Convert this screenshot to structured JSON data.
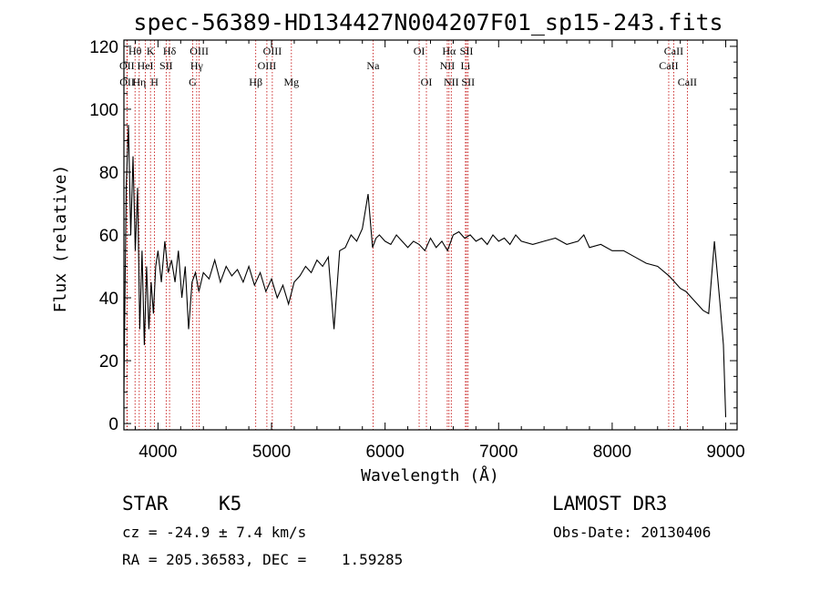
{
  "chart_data": {
    "type": "line",
    "title": "spec-56389-HD134427N004207F01_sp15-243.fits",
    "xlabel": "Wavelength (Å)",
    "ylabel": "Flux (relative)",
    "xlim": [
      3700,
      9100
    ],
    "ylim": [
      -2,
      122
    ],
    "xticks": [
      4000,
      5000,
      6000,
      7000,
      8000,
      9000
    ],
    "yticks": [
      0,
      20,
      40,
      60,
      80,
      100,
      120
    ],
    "series": [
      {
        "name": "flux",
        "x": [
          3700,
          3720,
          3740,
          3760,
          3780,
          3800,
          3820,
          3840,
          3860,
          3880,
          3900,
          3920,
          3940,
          3960,
          3980,
          4000,
          4030,
          4060,
          4090,
          4120,
          4150,
          4180,
          4210,
          4240,
          4270,
          4300,
          4330,
          4360,
          4400,
          4450,
          4500,
          4550,
          4600,
          4650,
          4700,
          4750,
          4800,
          4850,
          4900,
          4950,
          5000,
          5050,
          5100,
          5150,
          5200,
          5250,
          5300,
          5350,
          5400,
          5450,
          5500,
          5550,
          5600,
          5650,
          5700,
          5750,
          5800,
          5850,
          5890,
          5920,
          5950,
          6000,
          6050,
          6100,
          6150,
          6200,
          6250,
          6300,
          6350,
          6400,
          6450,
          6500,
          6550,
          6600,
          6650,
          6700,
          6750,
          6800,
          6850,
          6900,
          6950,
          7000,
          7050,
          7100,
          7150,
          7200,
          7300,
          7400,
          7500,
          7600,
          7700,
          7750,
          7800,
          7900,
          8000,
          8100,
          8200,
          8300,
          8400,
          8500,
          8550,
          8600,
          8650,
          8700,
          8750,
          8800,
          8850,
          8900,
          8950,
          8980,
          9000
        ],
        "values": [
          10,
          75,
          95,
          60,
          85,
          55,
          75,
          30,
          55,
          25,
          50,
          30,
          45,
          35,
          50,
          55,
          45,
          58,
          48,
          52,
          45,
          55,
          40,
          50,
          30,
          45,
          48,
          42,
          48,
          46,
          52,
          45,
          50,
          47,
          49,
          45,
          50,
          44,
          48,
          42,
          46,
          40,
          44,
          38,
          45,
          47,
          50,
          48,
          52,
          50,
          53,
          30,
          55,
          56,
          60,
          58,
          62,
          73,
          56,
          59,
          60,
          58,
          57,
          60,
          58,
          56,
          58,
          57,
          55,
          59,
          56,
          58,
          55,
          60,
          61,
          59,
          60,
          58,
          59,
          57,
          60,
          58,
          59,
          57,
          60,
          58,
          57,
          58,
          59,
          57,
          58,
          60,
          56,
          57,
          55,
          55,
          53,
          51,
          50,
          47,
          45,
          43,
          42,
          40,
          38,
          36,
          35,
          58,
          38,
          25,
          2
        ]
      }
    ],
    "spectral_lines": [
      {
        "label": "OII",
        "wavelength": 3727,
        "row": 2
      },
      {
        "label": "OII",
        "wavelength": 3729,
        "row": 3
      },
      {
        "label": "Hθ",
        "wavelength": 3798,
        "row": 1
      },
      {
        "label": "Hη",
        "wavelength": 3835,
        "row": 3
      },
      {
        "label": "HeI",
        "wavelength": 3889,
        "row": 2
      },
      {
        "label": "K",
        "wavelength": 3934,
        "row": 1
      },
      {
        "label": "H",
        "wavelength": 3969,
        "row": 3
      },
      {
        "label": "SII",
        "wavelength": 4072,
        "row": 2
      },
      {
        "label": "Hδ",
        "wavelength": 4102,
        "row": 1
      },
      {
        "label": "G",
        "wavelength": 4305,
        "row": 3
      },
      {
        "label": "Hγ",
        "wavelength": 4341,
        "row": 2
      },
      {
        "label": "OIII",
        "wavelength": 4363,
        "row": 1
      },
      {
        "label": "Hβ",
        "wavelength": 4861,
        "row": 3
      },
      {
        "label": "OIII",
        "wavelength": 4959,
        "row": 2
      },
      {
        "label": "OIII",
        "wavelength": 5007,
        "row": 1
      },
      {
        "label": "Mg",
        "wavelength": 5175,
        "row": 3
      },
      {
        "label": "Na",
        "wavelength": 5894,
        "row": 2
      },
      {
        "label": "OI",
        "wavelength": 6300,
        "row": 1
      },
      {
        "label": "OI",
        "wavelength": 6364,
        "row": 3
      },
      {
        "label": "NII",
        "wavelength": 6548,
        "row": 2
      },
      {
        "label": "Hα",
        "wavelength": 6563,
        "row": 1
      },
      {
        "label": "NII",
        "wavelength": 6583,
        "row": 3
      },
      {
        "label": "Li",
        "wavelength": 6708,
        "row": 2
      },
      {
        "label": "SII",
        "wavelength": 6717,
        "row": 1
      },
      {
        "label": "SII",
        "wavelength": 6731,
        "row": 3
      },
      {
        "label": "CaII",
        "wavelength": 8498,
        "row": 2
      },
      {
        "label": "CaII",
        "wavelength": 8542,
        "row": 1
      },
      {
        "label": "CaII",
        "wavelength": 8662,
        "row": 3
      }
    ]
  },
  "info": {
    "object_class": "STAR",
    "subclass": "K5",
    "survey": "LAMOST DR3",
    "cz": "cz = -24.9 ± 7.4 km/s",
    "obs_date": "Obs-Date: 20130406",
    "coords": "RA = 205.36583, DEC =    1.59285"
  },
  "colors": {
    "line_marker": "#c00000",
    "spectrum": "#000000"
  }
}
